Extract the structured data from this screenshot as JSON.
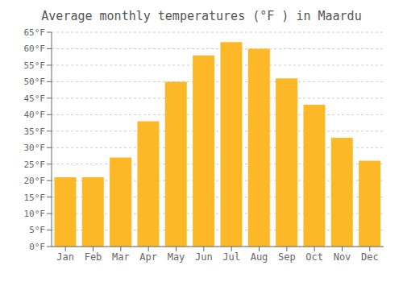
{
  "chart_data": {
    "type": "bar",
    "title": "Average monthly temperatures (°F ) in Maardu",
    "categories": [
      "Jan",
      "Feb",
      "Mar",
      "Apr",
      "May",
      "Jun",
      "Jul",
      "Aug",
      "Sep",
      "Oct",
      "Nov",
      "Dec"
    ],
    "values": [
      21,
      21,
      27,
      38,
      50,
      58,
      62,
      60,
      51,
      43,
      33,
      26
    ],
    "color": "#FDB827",
    "ylim": [
      0,
      65
    ],
    "yticks": [
      {
        "value": 0,
        "label": "0°F"
      },
      {
        "value": 5,
        "label": "5°F"
      },
      {
        "value": 10,
        "label": "10°F"
      },
      {
        "value": 15,
        "label": "15°F"
      },
      {
        "value": 20,
        "label": "20°F"
      },
      {
        "value": 25,
        "label": "25°F"
      },
      {
        "value": 30,
        "label": "30°F"
      },
      {
        "value": 35,
        "label": "35°F"
      },
      {
        "value": 40,
        "label": "40°F"
      },
      {
        "value": 45,
        "label": "45°F"
      },
      {
        "value": 50,
        "label": "50°F"
      },
      {
        "value": 55,
        "label": "55°F"
      },
      {
        "value": 60,
        "label": "60°F"
      },
      {
        "value": 65,
        "label": "65°F"
      }
    ],
    "grid": true
  }
}
